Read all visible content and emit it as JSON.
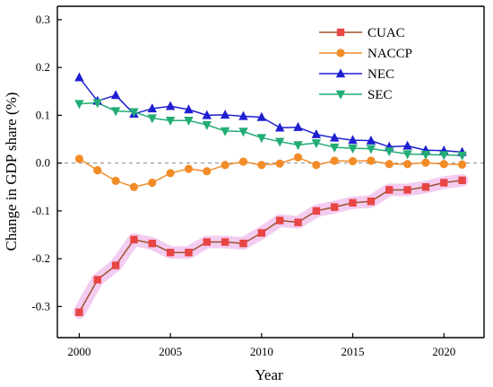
{
  "chart_data": {
    "type": "line",
    "title": "",
    "xlabel": "Year",
    "ylabel": "Change in GDP share (%)",
    "x": [
      2000,
      2001,
      2002,
      2003,
      2004,
      2005,
      2006,
      2007,
      2008,
      2009,
      2010,
      2011,
      2012,
      2013,
      2014,
      2015,
      2016,
      2017,
      2018,
      2019,
      2020,
      2021
    ],
    "xlim": [
      1998.8,
      2022.2
    ],
    "ylim": [
      -0.365,
      0.328
    ],
    "xticks": [
      "2000",
      "2005",
      "2010",
      "2015",
      "2020"
    ],
    "yticks": [
      "-0.3",
      "-0.2",
      "-0.1",
      "0.0",
      "0.1",
      "0.2",
      "0.3"
    ],
    "grid": false,
    "zero_line": true,
    "legend_position": "top-right",
    "series": [
      {
        "name": "CUAC",
        "color": "#e84545",
        "line_color": "#a0522d",
        "marker": "square",
        "values": [
          -0.312,
          -0.244,
          -0.214,
          -0.16,
          -0.168,
          -0.187,
          -0.187,
          -0.165,
          -0.165,
          -0.168,
          -0.146,
          -0.12,
          -0.124,
          -0.1,
          -0.092,
          -0.083,
          -0.08,
          -0.056,
          -0.056,
          -0.05,
          -0.041,
          -0.036
        ]
      },
      {
        "name": "NACCP",
        "color": "#f28c28",
        "line_color": "#f28c28",
        "marker": "circle",
        "values": [
          0.009,
          -0.015,
          -0.037,
          -0.05,
          -0.041,
          -0.021,
          -0.012,
          -0.017,
          -0.004,
          0.003,
          -0.004,
          -0.001,
          0.012,
          -0.004,
          0.005,
          0.004,
          0.005,
          -0.002,
          -0.002,
          0.001,
          -0.002,
          -0.003
        ]
      },
      {
        "name": "NEC",
        "color": "#1f1fd1",
        "line_color": "#1f1fd1",
        "marker": "triangle-up",
        "values": [
          0.179,
          0.13,
          0.142,
          0.103,
          0.114,
          0.119,
          0.112,
          0.1,
          0.101,
          0.098,
          0.096,
          0.074,
          0.075,
          0.06,
          0.053,
          0.048,
          0.047,
          0.034,
          0.036,
          0.027,
          0.026,
          0.023
        ]
      },
      {
        "name": "SEC",
        "color": "#22ad74",
        "line_color": "#22ad74",
        "marker": "triangle-down",
        "values": [
          0.124,
          0.126,
          0.109,
          0.107,
          0.094,
          0.089,
          0.089,
          0.08,
          0.067,
          0.066,
          0.053,
          0.045,
          0.038,
          0.042,
          0.033,
          0.031,
          0.03,
          0.025,
          0.019,
          0.018,
          0.017,
          0.016
        ]
      }
    ],
    "highlight": {
      "series": "CUAC",
      "color": "#f3ccf0"
    }
  }
}
